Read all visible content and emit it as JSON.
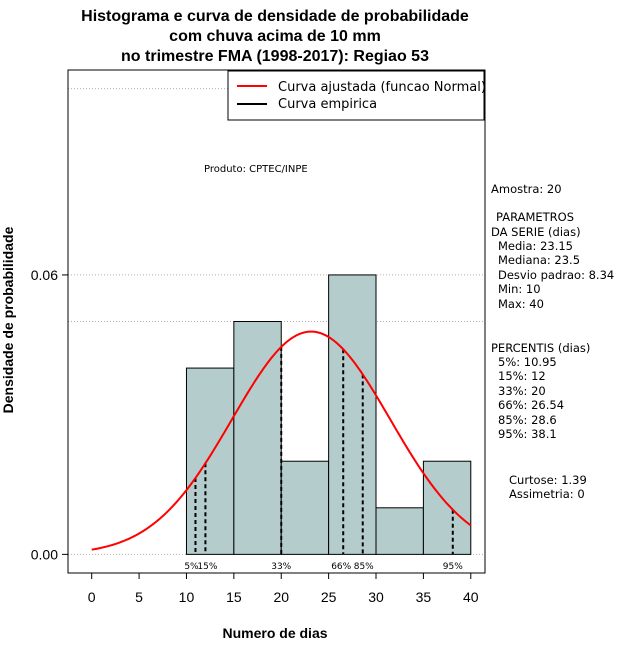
{
  "chart_data": {
    "type": "bar",
    "title_lines": [
      "Histograma e curva de densidade de probabilidade",
      "com chuva acima de 10 mm",
      "no trimestre FMA (1998-2017): Regiao 53"
    ],
    "xlabel": "Numero de dias",
    "ylabel": "Densidade de probabilidade",
    "xlim": [
      -2.5,
      41.5
    ],
    "ylim": [
      -0.004,
      0.104
    ],
    "x_ticks": [
      "0",
      "5",
      "10",
      "15",
      "20",
      "25",
      "30",
      "35",
      "40"
    ],
    "y_ticks": [
      "0.00",
      "0.06"
    ],
    "bins": [
      {
        "from": 10,
        "to": 15,
        "density": 0.04
      },
      {
        "from": 15,
        "to": 20,
        "density": 0.05
      },
      {
        "from": 20,
        "to": 25,
        "density": 0.02
      },
      {
        "from": 25,
        "to": 30,
        "density": 0.06
      },
      {
        "from": 30,
        "to": 35,
        "density": 0.01
      },
      {
        "from": 35,
        "to": 40,
        "density": 0.02
      }
    ],
    "bar_color": "#b4cccc",
    "fit_curve": {
      "name": "Curva ajustada (funcao Normal)",
      "color": "#ff0000",
      "mean": 23.15,
      "sd": 8.34,
      "x_from": 0,
      "x_to": 40
    },
    "empirical_curve": {
      "name": "Curva empirica",
      "color": "#000000"
    },
    "percentile_lines": [
      {
        "label": "5%",
        "x": 10.95
      },
      {
        "label": "15%",
        "x": 12
      },
      {
        "label": "33%",
        "x": 20
      },
      {
        "label": "66%",
        "x": 26.54
      },
      {
        "label": "85%",
        "x": 28.6
      },
      {
        "label": "95%",
        "x": 38.1
      }
    ],
    "gridlines_y": [
      0.0,
      0.05,
      0.06,
      0.1
    ],
    "legend_position": "top-right",
    "annotation": "Produto: CPTEC/INPE"
  },
  "side_panel": {
    "sample": "Amostra: 20",
    "params_title_1": "PARAMETROS",
    "params_title_2": "DA SERIE (dias)",
    "params": [
      "Media: 23.15",
      "Mediana: 23.5",
      "Desvio padrao: 8.34",
      "Min: 10",
      "Max: 40"
    ],
    "percentiles_title": "PERCENTIS (dias)",
    "percentiles": [
      "5%: 10.95",
      "15%: 12",
      "33%: 20",
      "66%: 26.54",
      "85%: 28.6",
      "95%: 38.1"
    ],
    "kurtosis": "Curtose: 1.39",
    "asymmetry": "Assimetria: 0"
  }
}
